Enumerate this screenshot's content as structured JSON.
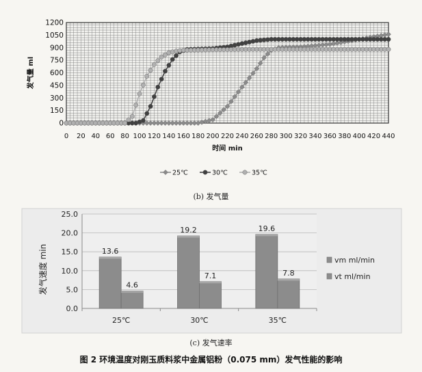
{
  "chart_data": [
    {
      "type": "line",
      "panel_caption": "(b) 发气量",
      "xlabel": "时间  min",
      "ylabel": "发气量  ml",
      "xlim": [
        0,
        440
      ],
      "ylim": [
        0,
        1200
      ],
      "x_ticks": [
        0,
        20,
        40,
        60,
        80,
        100,
        120,
        140,
        160,
        180,
        200,
        220,
        240,
        260,
        280,
        300,
        320,
        340,
        360,
        380,
        400,
        420,
        440
      ],
      "y_ticks": [
        0,
        150,
        300,
        450,
        600,
        750,
        900,
        1050,
        1200
      ],
      "grid": true,
      "legend_position": "bottom",
      "series": [
        {
          "name": "25℃",
          "color": "#8a8a8a",
          "marker": "diamond",
          "points": [
            [
              0,
              0
            ],
            [
              180,
              0
            ],
            [
              200,
              40
            ],
            [
              220,
              200
            ],
            [
              240,
              430
            ],
            [
              260,
              650
            ],
            [
              270,
              780
            ],
            [
              280,
              870
            ],
            [
              290,
              900
            ],
            [
              300,
              905
            ],
            [
              320,
              910
            ],
            [
              360,
              940
            ],
            [
              400,
              1000
            ],
            [
              440,
              1060
            ]
          ]
        },
        {
          "name": "30℃",
          "color": "#404040",
          "marker": "circle",
          "points": [
            [
              0,
              0
            ],
            [
              95,
              0
            ],
            [
              105,
              30
            ],
            [
              115,
              200
            ],
            [
              125,
              430
            ],
            [
              135,
              620
            ],
            [
              145,
              760
            ],
            [
              155,
              850
            ],
            [
              165,
              880
            ],
            [
              180,
              885
            ],
            [
              200,
              890
            ],
            [
              220,
              910
            ],
            [
              240,
              950
            ],
            [
              260,
              985
            ],
            [
              280,
              1000
            ],
            [
              320,
              1000
            ],
            [
              360,
              1000
            ],
            [
              400,
              1000
            ],
            [
              440,
              1000
            ]
          ]
        },
        {
          "name": "35℃",
          "color": "#b0b0b0",
          "marker": "circle",
          "points": [
            [
              0,
              0
            ],
            [
              80,
              0
            ],
            [
              90,
              80
            ],
            [
              100,
              350
            ],
            [
              110,
              560
            ],
            [
              120,
              700
            ],
            [
              130,
              790
            ],
            [
              140,
              840
            ],
            [
              150,
              860
            ],
            [
              160,
              870
            ],
            [
              200,
              875
            ],
            [
              260,
              880
            ],
            [
              320,
              880
            ],
            [
              380,
              880
            ],
            [
              440,
              880
            ]
          ]
        }
      ]
    },
    {
      "type": "bar",
      "panel_caption": "(c) 发气速率",
      "ylabel": "发气速度  min",
      "categories": [
        "25℃",
        "30℃",
        "35℃"
      ],
      "ylim": [
        0,
        25
      ],
      "y_ticks": [
        "0.0",
        "5.0",
        "10.0",
        "15.0",
        "20.0",
        "25.0"
      ],
      "grid": true,
      "legend_position": "right",
      "series": [
        {
          "name": "vm   ml/min",
          "values": [
            13.6,
            19.2,
            19.6
          ],
          "labels": [
            "13.6",
            "19.2",
            "19.6"
          ],
          "color": "#8c8c8c"
        },
        {
          "name": "vt    ml/min",
          "values": [
            4.6,
            7.1,
            7.8
          ],
          "labels": [
            "4.6",
            "7.1",
            "7.8"
          ],
          "color": "#8c8c8c"
        }
      ]
    }
  ],
  "figure_title": "图 2  环境温度对刚玉质料浆中金属铝粉（0.075 mm）发气性能的影响"
}
